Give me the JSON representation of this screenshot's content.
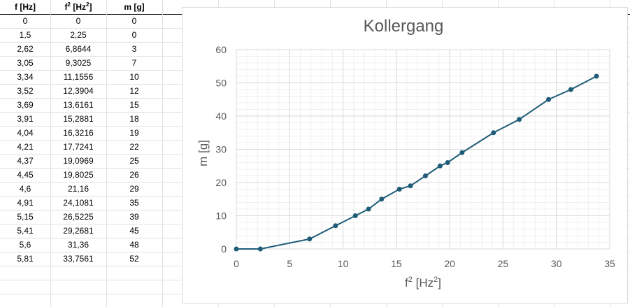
{
  "table": {
    "headers": {
      "col1_base": "f [Hz]",
      "col2_base": "f",
      "col2_exp": "2",
      "col2_unit": " [Hz",
      "col2_unit_exp": "2",
      "col2_close": "]",
      "col3": "m [g]"
    },
    "rows": [
      [
        "0",
        "0",
        "0"
      ],
      [
        "1,5",
        "2,25",
        "0"
      ],
      [
        "2,62",
        "6,8644",
        "3"
      ],
      [
        "3,05",
        "9,3025",
        "7"
      ],
      [
        "3,34",
        "11,1556",
        "10"
      ],
      [
        "3,52",
        "12,3904",
        "12"
      ],
      [
        "3,69",
        "13,6161",
        "15"
      ],
      [
        "3,91",
        "15,2881",
        "18"
      ],
      [
        "4,04",
        "16,3216",
        "19"
      ],
      [
        "4,21",
        "17,7241",
        "22"
      ],
      [
        "4,37",
        "19,0969",
        "25"
      ],
      [
        "4,45",
        "19,8025",
        "26"
      ],
      [
        "4,6",
        "21,16",
        "29"
      ],
      [
        "4,91",
        "24,1081",
        "35"
      ],
      [
        "5,15",
        "26,5225",
        "39"
      ],
      [
        "5,41",
        "29,2681",
        "45"
      ],
      [
        "5,6",
        "31,36",
        "48"
      ],
      [
        "5,81",
        "33,7561",
        "52"
      ]
    ]
  },
  "chart_data": {
    "type": "scatter",
    "title": "Kollergang",
    "xlabel_base": "f",
    "xlabel_exp": "2",
    "xlabel_unit": " [Hz",
    "xlabel_unit_exp": "2",
    "xlabel_close": "]",
    "ylabel": "m [g]",
    "xlim": [
      0,
      35
    ],
    "ylim": [
      0,
      60
    ],
    "xticks": [
      0,
      5,
      10,
      15,
      20,
      25,
      30,
      35
    ],
    "yticks": [
      0,
      10,
      20,
      30,
      40,
      50,
      60
    ],
    "grid": true,
    "minor_grid": true,
    "markers_and_lines": true,
    "series": [
      {
        "color": "#1f5c78",
        "x": [
          0,
          2.25,
          6.8644,
          9.3025,
          11.1556,
          12.3904,
          13.6161,
          15.2881,
          16.3216,
          17.7241,
          19.0969,
          19.8025,
          21.16,
          24.1081,
          26.5225,
          29.2681,
          31.36,
          33.7561
        ],
        "y": [
          0,
          0,
          3,
          7,
          10,
          12,
          15,
          18,
          19,
          22,
          25,
          26,
          29,
          35,
          39,
          45,
          48,
          52
        ]
      }
    ]
  }
}
